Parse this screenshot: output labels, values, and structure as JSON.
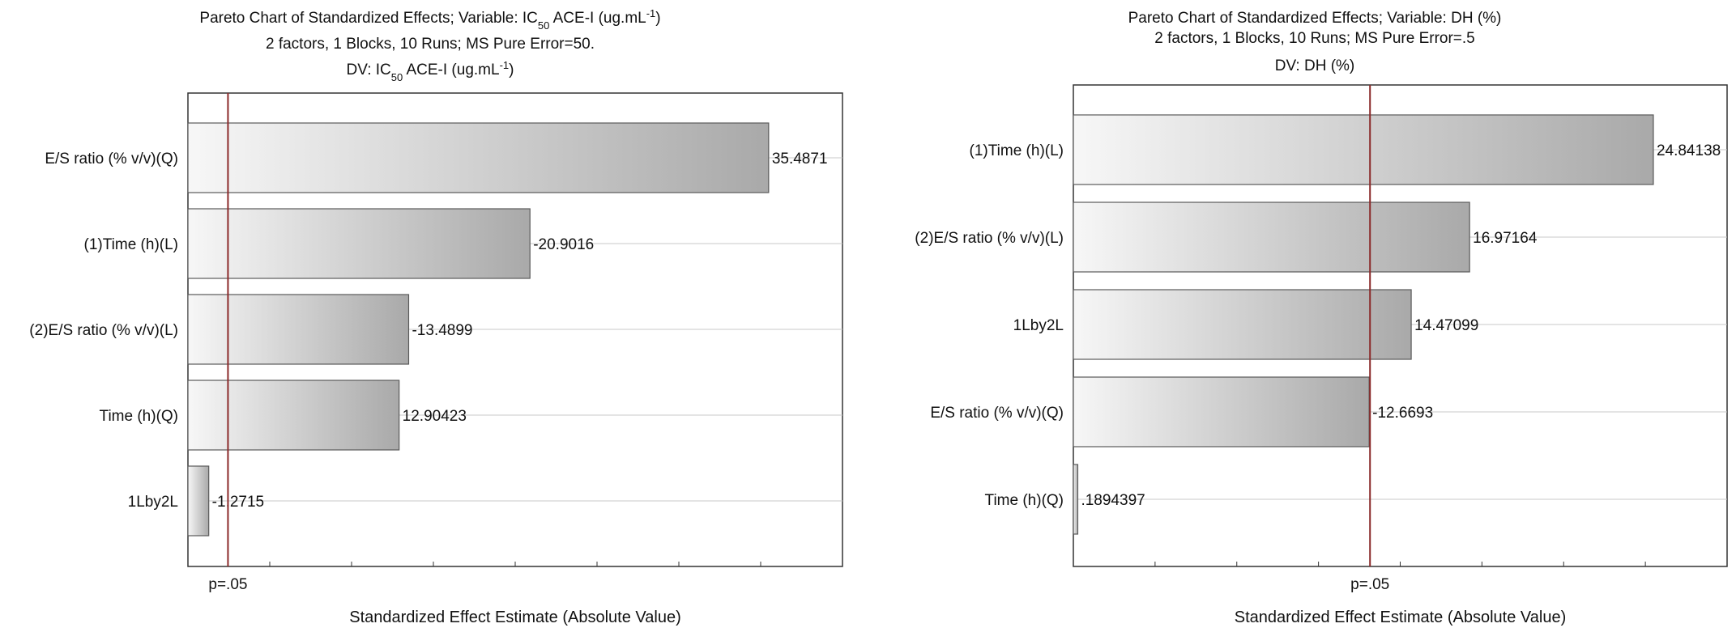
{
  "chart_data": [
    {
      "type": "bar",
      "orientation": "horizontal",
      "title_lines": [
        "Pareto Chart of Standardized Effects; Variable: IC50 ACE-I (ug.mL-1)",
        "2 factors, 1 Blocks, 10 Runs; MS Pure Error=50.",
        "DV: IC50 ACE-I (ug.mL-1)"
      ],
      "title_rich": [
        [
          {
            "t": "Pareto Chart of Standardized Effects; Variable: IC"
          },
          {
            "t": "50",
            "sub": true
          },
          {
            "t": " ACE-I (ug.mL"
          },
          {
            "t": "-1",
            "sup": true
          },
          {
            "t": ")"
          }
        ],
        [
          {
            "t": "2 factors, 1 Blocks, 10 Runs; MS Pure Error=50."
          }
        ],
        [
          {
            "t": "DV: IC"
          },
          {
            "t": "50",
            "sub": true
          },
          {
            "t": " ACE-I (ug.mL"
          },
          {
            "t": "-1",
            "sup": true
          },
          {
            "t": ")"
          }
        ]
      ],
      "categories": [
        "E/S ratio (% v/v)(Q)",
        "(1)Time (h)(L)",
        "(2)E/S ratio (% v/v)(L)",
        "Time (h)(Q)",
        "1Lby2L"
      ],
      "values": [
        35.4871,
        20.9016,
        13.4899,
        12.90423,
        1.2715
      ],
      "value_labels": [
        "35.4871",
        "-20.9016",
        "-13.4899",
        "12.90423",
        "-1.2715"
      ],
      "xlabel": "Standardized Effect Estimate (Absolute Value)",
      "significance_line": {
        "value": 2.4469,
        "label": "p=.05",
        "color": "#8b2a2a"
      },
      "xlim": [
        0,
        40
      ],
      "grid": true
    },
    {
      "type": "bar",
      "orientation": "horizontal",
      "title_lines": [
        "Pareto Chart of Standardized Effects; Variable: DH (%)",
        "2 factors, 1 Blocks, 10 Runs; MS Pure Error=.5",
        "DV: DH (%)"
      ],
      "title_rich": [
        [
          {
            "t": "Pareto Chart of Standardized Effects; Variable: DH (%)"
          }
        ],
        [
          {
            "t": "2 factors, 1 Blocks, 10 Runs; MS Pure Error=.5"
          }
        ],
        [
          {
            "t": "DV: DH (%)"
          }
        ]
      ],
      "categories": [
        "(1)Time (h)(L)",
        "(2)E/S ratio (% v/v)(L)",
        "1Lby2L",
        "E/S ratio (% v/v)(Q)",
        "Time (h)(Q)"
      ],
      "values": [
        24.84138,
        16.97164,
        14.47099,
        12.6693,
        0.1894397
      ],
      "value_labels": [
        "24.84138",
        "16.97164",
        "14.47099",
        "-12.6693",
        ".1894397"
      ],
      "xlabel": "Standardized Effect Estimate (Absolute Value)",
      "significance_line": {
        "value": 12.706,
        "label": "p=.05",
        "color": "#8b2a2a"
      },
      "xlim": [
        0,
        28
      ],
      "grid": true
    }
  ],
  "colors": {
    "bar_light": "#f7f7f7",
    "bar_dark": "#a9a9a9",
    "bar_stroke": "#5a5a5a",
    "frame": "#333333",
    "grid": "#c8c8c8"
  }
}
